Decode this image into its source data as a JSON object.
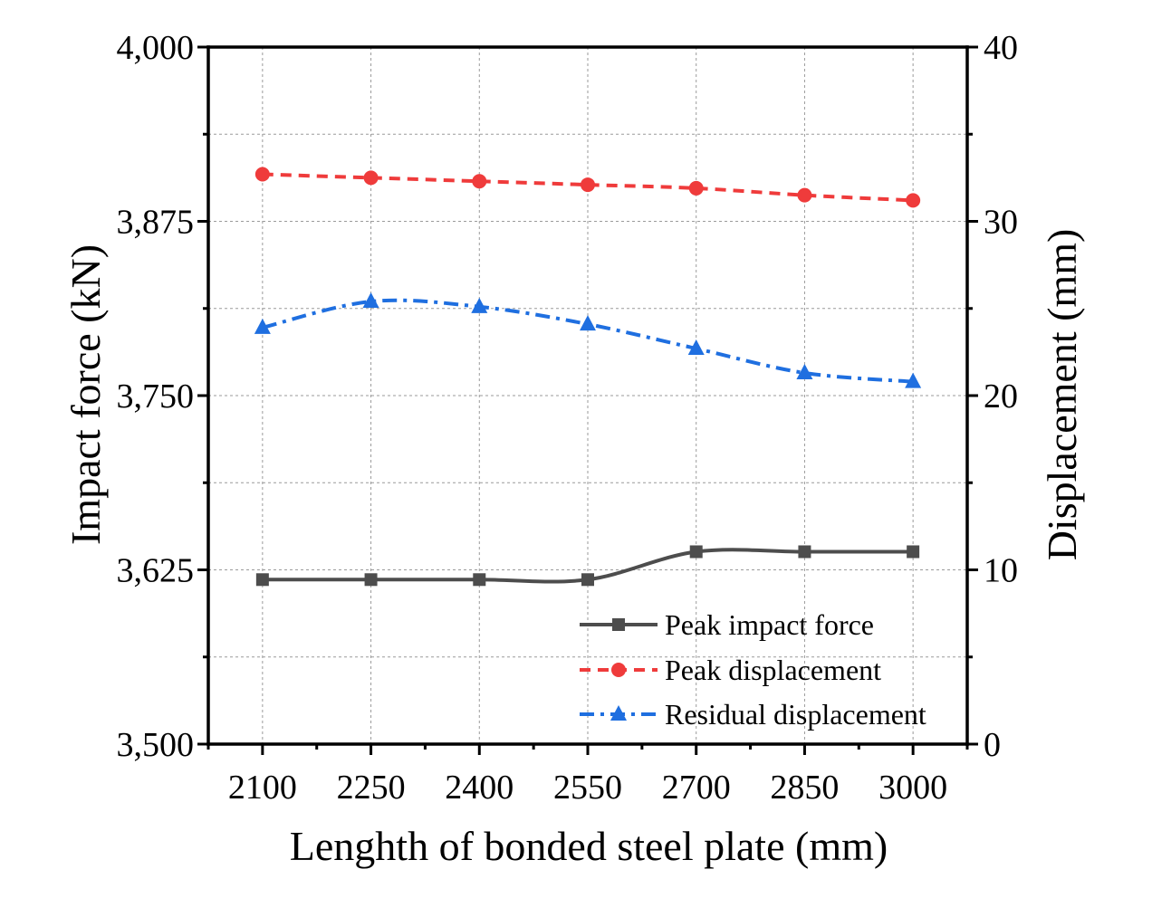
{
  "chart_data": {
    "type": "line",
    "x": [
      2100,
      2250,
      2400,
      2550,
      2700,
      2850,
      3000
    ],
    "x_tick_labels": [
      "2100",
      "2250",
      "2400",
      "2550",
      "2700",
      "2850",
      "3000"
    ],
    "xlabel": "Lenghth of bonded steel plate (mm)",
    "xlim": [
      2025,
      3075
    ],
    "y_left": {
      "label": "Impact force (kN)",
      "ylim": [
        3500,
        4000
      ],
      "ticks": [
        3500,
        3625,
        3750,
        3875,
        4000
      ],
      "tick_labels": [
        "3,500",
        "3,625",
        "3,750",
        "3,875",
        "4,000"
      ]
    },
    "y_right": {
      "label": "Displacement (mm)",
      "ylim": [
        0,
        40
      ],
      "ticks": [
        0,
        10,
        20,
        30,
        40
      ],
      "tick_labels": [
        "0",
        "10",
        "20",
        "30",
        "40"
      ]
    },
    "grid": true,
    "legend_position": "bottom-right",
    "series": [
      {
        "name": "Peak impact force",
        "axis": "left",
        "color": "#4d4d4d",
        "marker": "square",
        "line_style": "solid",
        "values": [
          3618,
          3618,
          3618,
          3618,
          3638,
          3638,
          3638
        ]
      },
      {
        "name": "Peak displacement",
        "axis": "right",
        "color": "#ef3b3b",
        "marker": "circle",
        "line_style": "dash",
        "values": [
          32.7,
          32.5,
          32.3,
          32.1,
          31.9,
          31.5,
          31.2
        ]
      },
      {
        "name": "Residual displacement",
        "axis": "right",
        "color": "#1f6fe0",
        "marker": "triangle",
        "line_style": "dashdot",
        "values": [
          23.9,
          25.4,
          25.1,
          24.1,
          22.7,
          21.3,
          20.8
        ]
      }
    ]
  }
}
